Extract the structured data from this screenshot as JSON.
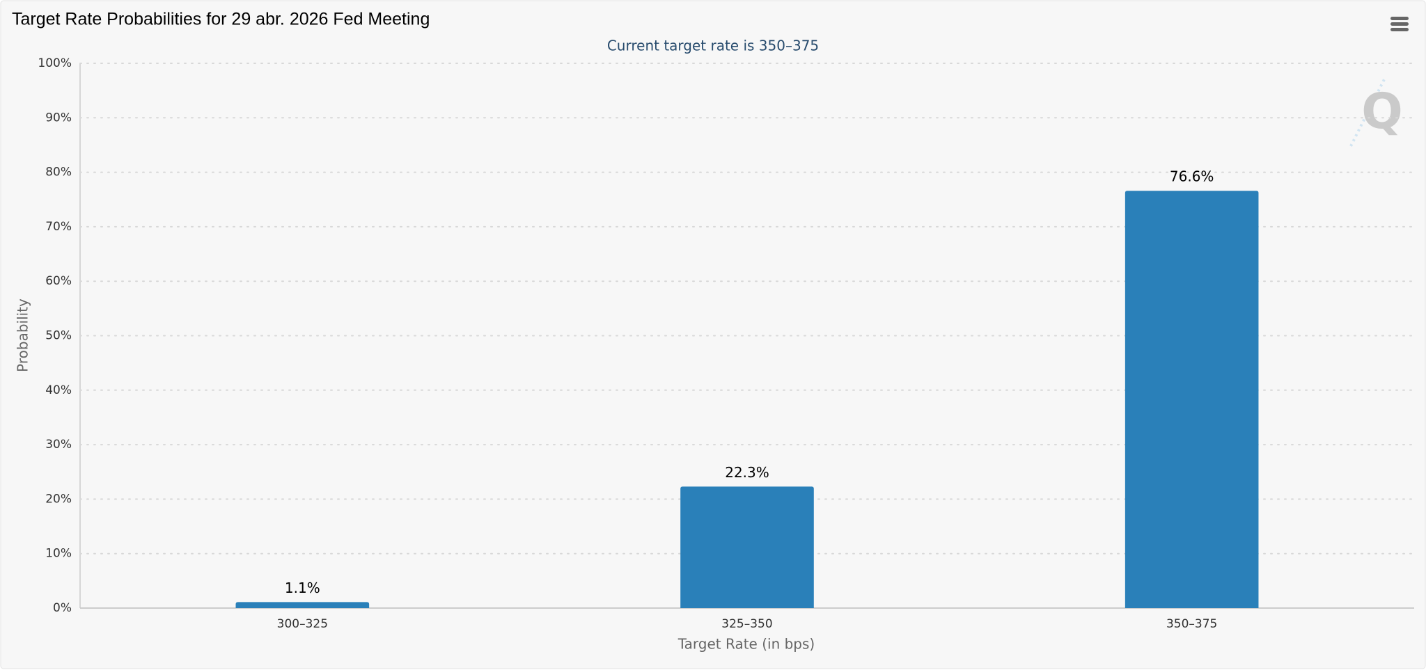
{
  "chart_data": {
    "type": "bar",
    "title": "Target Rate Probabilities for 29 abr. 2026 Fed Meeting",
    "subtitle": "Current target rate is 350–375",
    "x_label": "Target Rate (in bps)",
    "y_label": "Probability",
    "categories": [
      "300–325",
      "325–350",
      "350–375"
    ],
    "values": [
      1.1,
      22.3,
      76.6
    ],
    "value_labels": [
      "1.1%",
      "22.3%",
      "76.6%"
    ],
    "color": "#2a80b9",
    "ylim": [
      0,
      100
    ],
    "yticks": [
      {
        "value": 0,
        "label": "0%"
      },
      {
        "value": 10,
        "label": "10%"
      },
      {
        "value": 20,
        "label": "20%"
      },
      {
        "value": 30,
        "label": "30%"
      },
      {
        "value": 40,
        "label": "40%"
      },
      {
        "value": 50,
        "label": "50%"
      },
      {
        "value": 60,
        "label": "60%"
      },
      {
        "value": 70,
        "label": "70%"
      },
      {
        "value": 80,
        "label": "80%"
      },
      {
        "value": 90,
        "label": "90%"
      },
      {
        "value": 100,
        "label": "100%"
      }
    ],
    "grid": true
  }
}
